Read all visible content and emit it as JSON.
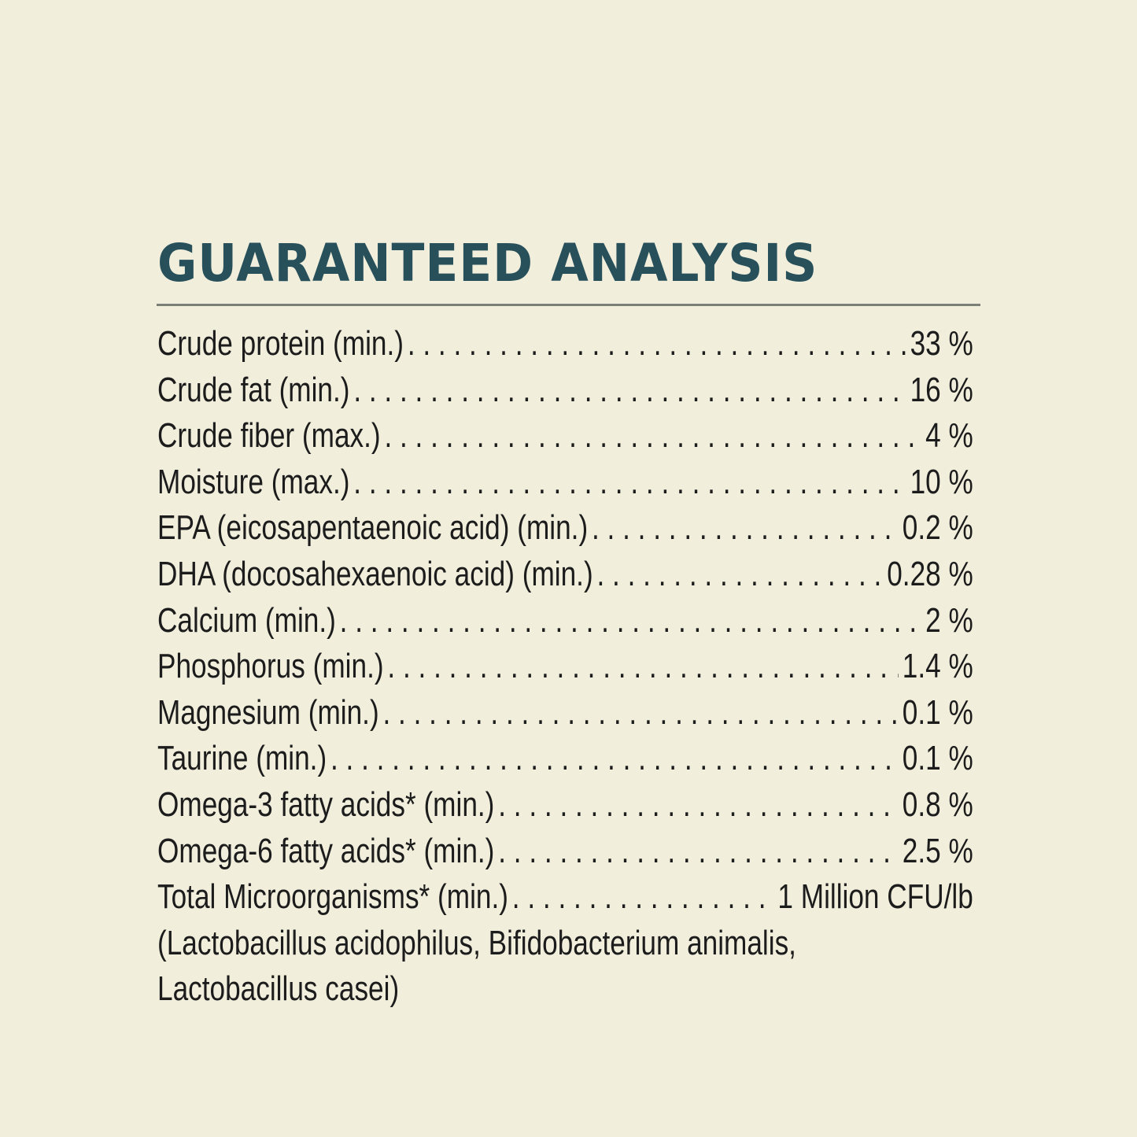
{
  "title": "GUARANTEED ANALYSIS",
  "colors": {
    "background": "#f1eedc",
    "title": "#27505b",
    "rule": "#7b7f76",
    "text": "#1c1c1c"
  },
  "rows": [
    {
      "label": "Crude protein (min.)",
      "value": "33 %"
    },
    {
      "label": "Crude fat (min.)",
      "value": "16 %"
    },
    {
      "label": "Crude fiber (max.)",
      "value": "4 %"
    },
    {
      "label": "Moisture (max.)",
      "value": "10 %"
    },
    {
      "label": "EPA (eicosapentaenoic acid) (min.)",
      "value": "0.2 %"
    },
    {
      "label": "DHA (docosahexaenoic acid) (min.)",
      "value": "0.28 %"
    },
    {
      "label": "Calcium (min.)",
      "value": "2 %"
    },
    {
      "label": "Phosphorus (min.)",
      "value": "1.4 %"
    },
    {
      "label": "Magnesium (min.)",
      "value": "0.1 %"
    },
    {
      "label": "Taurine (min.)",
      "value": "0.1 %"
    },
    {
      "label": "Omega-3 fatty acids* (min.)",
      "value": "0.8 %"
    },
    {
      "label": "Omega-6 fatty acids* (min.)",
      "value": "2.5 %"
    },
    {
      "label": "Total Microorganisms* (min.)",
      "value": "1 Million CFU/lb"
    }
  ],
  "note_lines": [
    "(Lactobacillus acidophilus, Bifidobacterium animalis,",
    "Lactobacillus casei)"
  ]
}
